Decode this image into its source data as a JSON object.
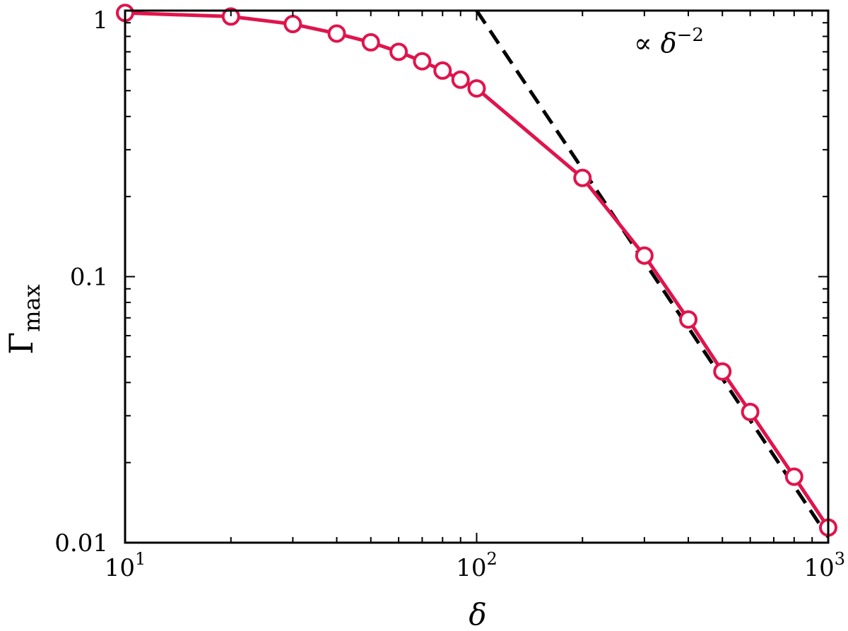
{
  "chart_data": {
    "type": "line",
    "xscale": "log",
    "yscale": "log",
    "xlim": [
      10,
      1000
    ],
    "ylim": [
      0.01,
      1
    ],
    "xlabel": "δ",
    "ylabel_main": "Γ",
    "ylabel_sub": "max",
    "x_ticks": [
      {
        "value": 10,
        "base": "10",
        "exp": "1"
      },
      {
        "value": 100,
        "base": "10",
        "exp": "2"
      },
      {
        "value": 1000,
        "base": "10",
        "exp": "3"
      }
    ],
    "y_ticks": [
      {
        "value": 0.01,
        "label": "0.01"
      },
      {
        "value": 0.1,
        "label": "0.1"
      },
      {
        "value": 1,
        "label": "1"
      }
    ],
    "series": [
      {
        "color": "#e0144c",
        "marker": "open-circle",
        "x": [
          10,
          20,
          30,
          40,
          50,
          60,
          70,
          80,
          90,
          100,
          200,
          300,
          400,
          500,
          600,
          800,
          1000
        ],
        "y": [
          0.98,
          0.95,
          0.89,
          0.82,
          0.76,
          0.7,
          0.645,
          0.595,
          0.55,
          0.51,
          0.235,
          0.12,
          0.069,
          0.044,
          0.031,
          0.0177,
          0.0114
        ]
      }
    ],
    "reference_line": {
      "color": "#000000",
      "style": "dashed",
      "x": [
        100,
        1000
      ],
      "y": [
        1.0,
        0.0105
      ],
      "annotation": {
        "prefix": "∝ ",
        "base": "δ",
        "exp": "−2",
        "x": 280,
        "y": 0.75
      }
    }
  }
}
